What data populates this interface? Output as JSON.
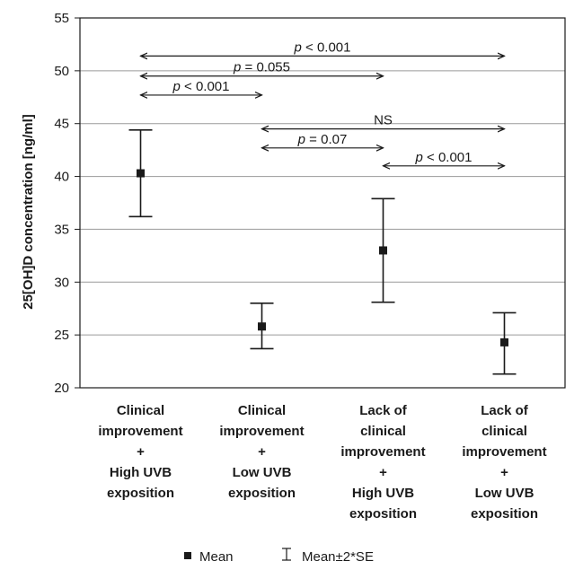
{
  "chart_data": {
    "type": "scatter",
    "subtype": "mean-with-error-bars",
    "ylabel": "25[OH]D concentration [ng/ml]",
    "ylim": [
      20,
      55
    ],
    "yticks": [
      20,
      25,
      30,
      35,
      40,
      45,
      50,
      55
    ],
    "grid": "horizontal",
    "categories": [
      [
        "Clinical",
        "improvement",
        "+",
        "High UVB",
        "exposition"
      ],
      [
        "Clinical",
        "improvement",
        "+",
        "Low UVB",
        "exposition"
      ],
      [
        "Lack of",
        "clinical",
        "improvement",
        "+",
        "High UVB",
        "exposition"
      ],
      [
        "Lack of",
        "clinical",
        "improvement",
        "+",
        "Low UVB",
        "exposition"
      ]
    ],
    "mean": [
      40.3,
      25.8,
      33.0,
      24.3
    ],
    "lower": [
      36.2,
      23.7,
      28.1,
      21.3
    ],
    "upper": [
      44.4,
      28.0,
      37.9,
      27.1
    ],
    "comparisons": [
      {
        "from": 0,
        "to": 3,
        "y": 51.4,
        "prefix": "p",
        "value": " < 0.001"
      },
      {
        "from": 0,
        "to": 2,
        "y": 49.5,
        "prefix": "p",
        "value": " = 0.055"
      },
      {
        "from": 0,
        "to": 1,
        "y": 47.7,
        "prefix": "p",
        "value": " < 0.001"
      },
      {
        "from": 1,
        "to": 3,
        "y": 44.5,
        "prefix": "",
        "value": "NS"
      },
      {
        "from": 1,
        "to": 2,
        "y": 42.7,
        "prefix": "p",
        "value": " = 0.07"
      },
      {
        "from": 2,
        "to": 3,
        "y": 41.0,
        "prefix": "p",
        "value": " < 0.001"
      }
    ],
    "legend": {
      "mean_label": "Mean",
      "bar_label": "Mean±2*SE",
      "position": "bottom"
    }
  }
}
